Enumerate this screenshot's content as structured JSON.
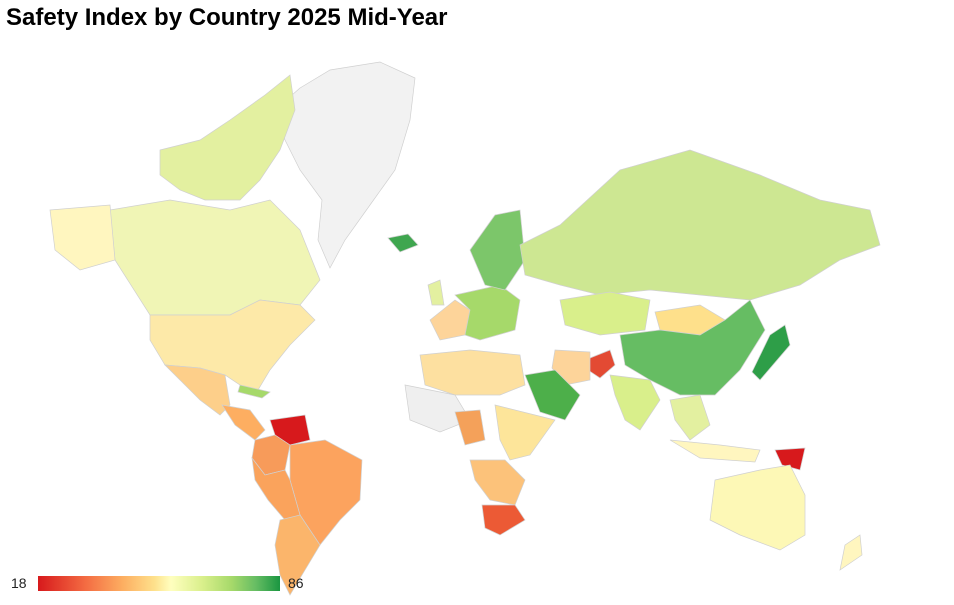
{
  "title": "Safety Index by Country 2025 Mid-Year",
  "legend": {
    "min": "18",
    "max": "86"
  },
  "colors": {
    "very_low": "#d7191c",
    "low": "#f46d43",
    "low_mid": "#fdae61",
    "mid": "#fee08b",
    "mid_high": "#ffffbf",
    "high": "#d9ef8b",
    "higher": "#a6d96a",
    "very_high": "#66bd63",
    "top": "#1a9641",
    "no_data": "#f2f2f2",
    "border": "#cfcfcf"
  }
}
